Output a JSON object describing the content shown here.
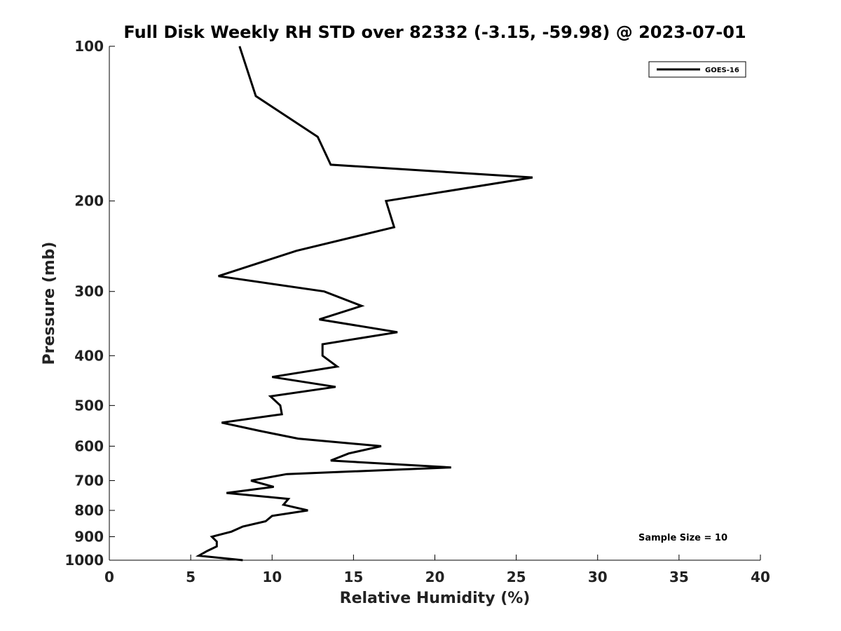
{
  "chart_data": {
    "type": "line",
    "title": "Full Disk Weekly RH STD over 82332 (-3.15, -59.98) @ 2023-07-01",
    "xlabel": "Relative Humidity (%)",
    "ylabel": "Pressure (mb)",
    "xlim": [
      0,
      40
    ],
    "ylim": [
      1000,
      100
    ],
    "yscale": "log",
    "x_ticks": [
      0,
      5,
      10,
      15,
      20,
      25,
      30,
      35,
      40
    ],
    "x_tick_labels": [
      "0",
      "5",
      "10",
      "15",
      "20",
      "25",
      "30",
      "35",
      "40"
    ],
    "y_ticks": [
      100,
      200,
      300,
      400,
      500,
      600,
      700,
      800,
      900,
      1000
    ],
    "y_tick_labels": [
      "100",
      "200",
      "300",
      "400",
      "500",
      "600",
      "700",
      "800",
      "900",
      "1000"
    ],
    "grid": false,
    "legend": {
      "position": "top-right",
      "entries": [
        "GOES-16"
      ]
    },
    "annotation": "Sample Size = 10",
    "series": [
      {
        "name": "GOES-16",
        "color": "#000000",
        "points": [
          [
            8.0,
            100
          ],
          [
            9.0,
            125
          ],
          [
            12.8,
            150
          ],
          [
            13.6,
            170
          ],
          [
            26.0,
            180
          ],
          [
            17.0,
            200
          ],
          [
            17.5,
            225
          ],
          [
            11.5,
            250
          ],
          [
            6.7,
            280
          ],
          [
            13.2,
            300
          ],
          [
            15.5,
            320
          ],
          [
            12.9,
            340
          ],
          [
            17.7,
            360
          ],
          [
            13.1,
            380
          ],
          [
            13.1,
            400
          ],
          [
            14.0,
            420
          ],
          [
            10.0,
            440
          ],
          [
            13.9,
            460
          ],
          [
            9.9,
            480
          ],
          [
            10.5,
            500
          ],
          [
            10.6,
            520
          ],
          [
            6.9,
            540
          ],
          [
            9.2,
            560
          ],
          [
            11.6,
            580
          ],
          [
            16.7,
            600
          ],
          [
            14.7,
            620
          ],
          [
            13.6,
            640
          ],
          [
            21.0,
            660
          ],
          [
            10.9,
            680
          ],
          [
            8.7,
            700
          ],
          [
            10.1,
            720
          ],
          [
            7.2,
            740
          ],
          [
            11.0,
            760
          ],
          [
            10.7,
            780
          ],
          [
            12.2,
            800
          ],
          [
            10.0,
            820
          ],
          [
            9.6,
            840
          ],
          [
            8.2,
            860
          ],
          [
            7.5,
            880
          ],
          [
            6.3,
            900
          ],
          [
            6.6,
            920
          ],
          [
            6.6,
            940
          ],
          [
            6.0,
            960
          ],
          [
            5.5,
            980
          ],
          [
            8.2,
            1000
          ]
        ]
      }
    ]
  }
}
